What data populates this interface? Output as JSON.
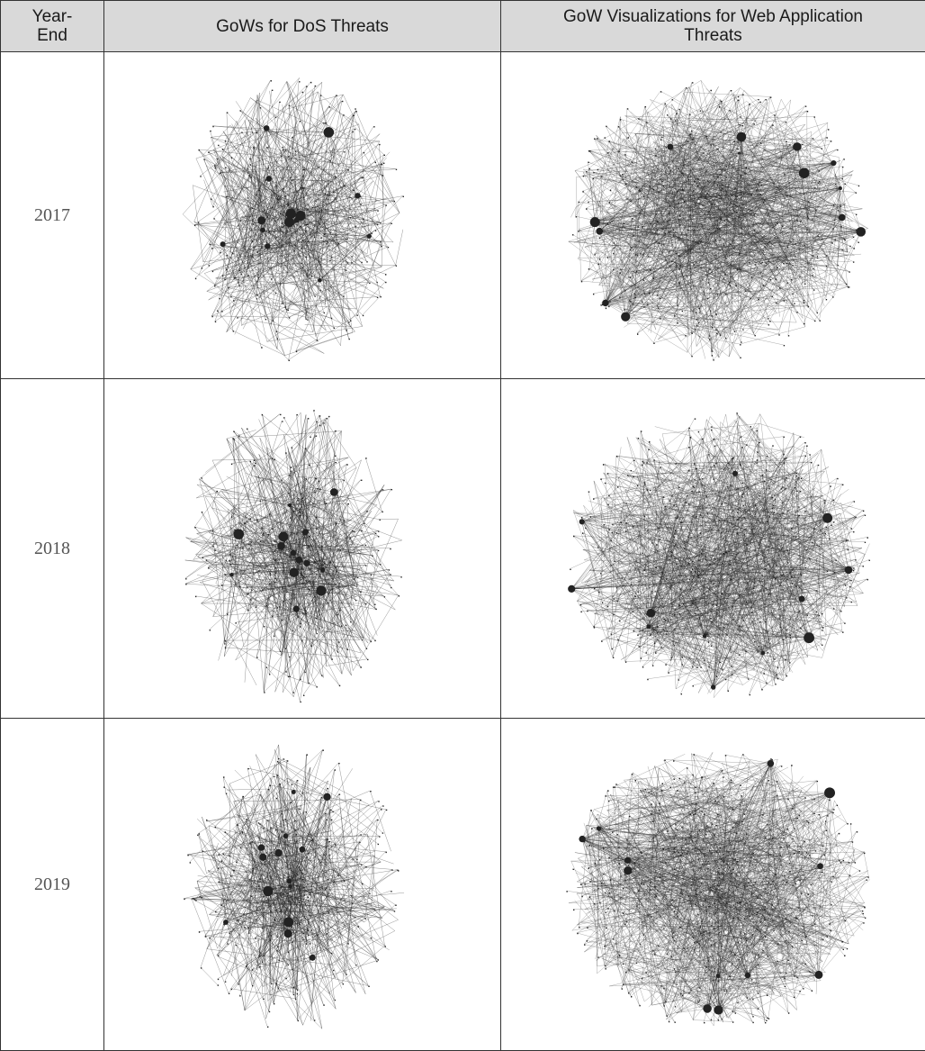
{
  "table": {
    "headers": {
      "year_line1": "Year-",
      "year_line2": "End",
      "dos": "GoWs for DoS Threats",
      "web_line1": "GoW Visualizations for Web Application",
      "web_line2": "Threats"
    },
    "rows": [
      {
        "year": "2017"
      },
      {
        "year": "2018"
      },
      {
        "year": "2019"
      }
    ],
    "colors": {
      "header_bg": "#d9d9d9",
      "border": "#333333",
      "graph_ink": "#222222"
    }
  }
}
